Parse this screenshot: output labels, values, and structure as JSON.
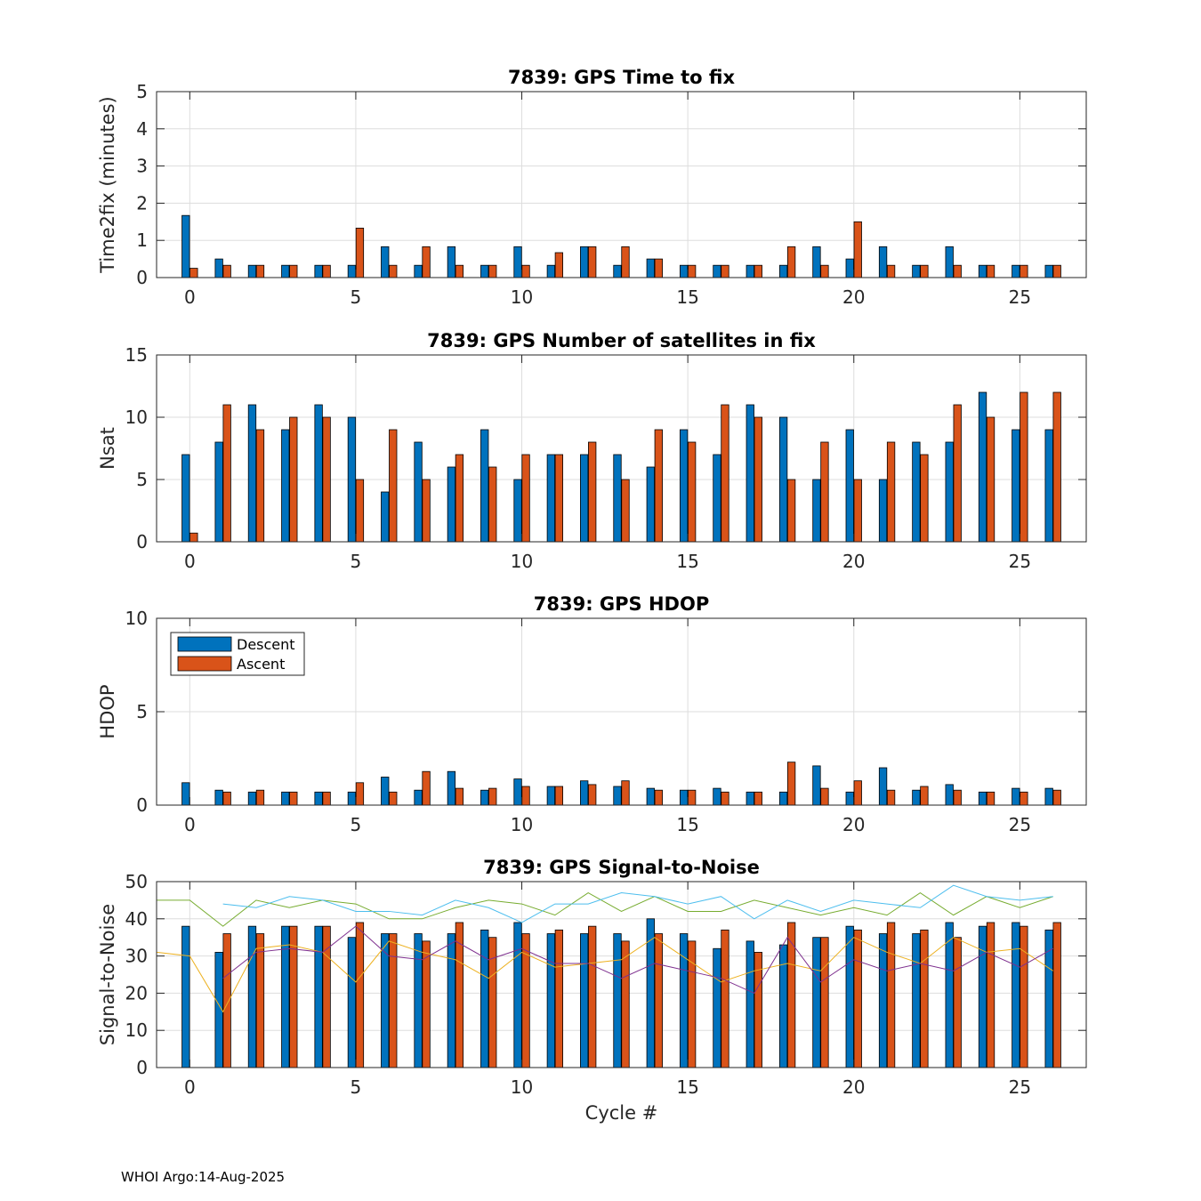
{
  "footer": "WHOI Argo:14-Aug-2025",
  "colors": {
    "descent": "#0072BD",
    "ascent": "#D95319",
    "grid": "#dddddd",
    "axis": "#262626"
  },
  "legend": {
    "descent": "Descent",
    "ascent": "Ascent",
    "placement": "top-left"
  },
  "chart_data": [
    {
      "type": "bar",
      "title": "7839: GPS Time to fix",
      "xlabel": "",
      "ylabel": "Time2fix (minutes)",
      "xlim": [
        -1,
        27
      ],
      "ylim": [
        0,
        5
      ],
      "xticks": [
        0,
        5,
        10,
        15,
        20,
        25
      ],
      "yticks": [
        0,
        1,
        2,
        3,
        4,
        5
      ],
      "x": [
        0,
        1,
        2,
        3,
        4,
        5,
        6,
        7,
        8,
        9,
        10,
        11,
        12,
        13,
        14,
        15,
        16,
        17,
        18,
        19,
        20,
        21,
        22,
        23,
        24,
        25,
        26
      ],
      "series": [
        {
          "name": "Descent",
          "values": [
            1.67,
            0.5,
            0.33,
            0.33,
            0.33,
            0.33,
            0.83,
            0.33,
            0.83,
            0.33,
            0.83,
            0.33,
            0.83,
            0.33,
            0.5,
            0.33,
            0.33,
            0.33,
            0.33,
            0.83,
            0.5,
            0.83,
            0.33,
            0.83,
            0.33,
            0.33,
            0.33
          ]
        },
        {
          "name": "Ascent",
          "values": [
            0.25,
            0.33,
            0.33,
            0.33,
            0.33,
            1.33,
            0.33,
            0.83,
            0.33,
            0.33,
            0.33,
            0.67,
            0.83,
            0.83,
            0.5,
            0.33,
            0.33,
            0.33,
            0.83,
            0.33,
            1.5,
            0.33,
            0.33,
            0.33,
            0.33,
            0.33,
            0.33
          ]
        }
      ]
    },
    {
      "type": "bar",
      "title": "7839: GPS Number of satellites in fix",
      "xlabel": "",
      "ylabel": "Nsat",
      "xlim": [
        -1,
        27
      ],
      "ylim": [
        0,
        15
      ],
      "xticks": [
        0,
        5,
        10,
        15,
        20,
        25
      ],
      "yticks": [
        0,
        5,
        10,
        15
      ],
      "x": [
        0,
        1,
        2,
        3,
        4,
        5,
        6,
        7,
        8,
        9,
        10,
        11,
        12,
        13,
        14,
        15,
        16,
        17,
        18,
        19,
        20,
        21,
        22,
        23,
        24,
        25,
        26
      ],
      "series": [
        {
          "name": "Descent",
          "values": [
            7,
            8,
            11,
            9,
            11,
            10,
            4,
            8,
            6,
            9,
            5,
            7,
            7,
            7,
            6,
            9,
            7,
            11,
            10,
            5,
            9,
            5,
            8,
            8,
            12,
            9,
            9
          ]
        },
        {
          "name": "Ascent",
          "values": [
            0.7,
            11,
            9,
            10,
            10,
            5,
            9,
            5,
            7,
            6,
            7,
            7,
            8,
            5,
            9,
            8,
            11,
            10,
            5,
            8,
            5,
            8,
            7,
            11,
            10,
            12,
            12
          ]
        }
      ]
    },
    {
      "type": "bar",
      "title": "7839: GPS HDOP",
      "xlabel": "",
      "ylabel": "HDOP",
      "xlim": [
        -1,
        27
      ],
      "ylim": [
        0,
        10
      ],
      "xticks": [
        0,
        5,
        10,
        15,
        20,
        25
      ],
      "yticks": [
        0,
        5,
        10
      ],
      "show_legend": true,
      "x": [
        0,
        1,
        2,
        3,
        4,
        5,
        6,
        7,
        8,
        9,
        10,
        11,
        12,
        13,
        14,
        15,
        16,
        17,
        18,
        19,
        20,
        21,
        22,
        23,
        24,
        25,
        26
      ],
      "series": [
        {
          "name": "Descent",
          "values": [
            1.2,
            0.8,
            0.7,
            0.7,
            0.7,
            0.7,
            1.5,
            0.8,
            1.8,
            0.8,
            1.4,
            1.0,
            1.3,
            1.0,
            0.9,
            0.8,
            0.9,
            0.7,
            0.7,
            2.1,
            0.7,
            2.0,
            0.8,
            1.1,
            0.7,
            0.9,
            0.9
          ]
        },
        {
          "name": "Ascent",
          "values": [
            0,
            0.7,
            0.8,
            0.7,
            0.7,
            1.2,
            0.7,
            1.8,
            0.9,
            0.9,
            1.0,
            1.0,
            1.1,
            1.3,
            0.8,
            0.8,
            0.7,
            0.7,
            2.3,
            0.9,
            1.3,
            0.8,
            1.0,
            0.8,
            0.7,
            0.7,
            0.8
          ]
        }
      ]
    },
    {
      "type": "bar",
      "title": "7839: GPS Signal-to-Noise",
      "xlabel": "Cycle #",
      "ylabel": "Signal-to-Noise",
      "xlim": [
        -1,
        27
      ],
      "ylim": [
        0,
        50
      ],
      "xticks": [
        0,
        5,
        10,
        15,
        20,
        25
      ],
      "yticks": [
        0,
        10,
        20,
        30,
        40,
        50
      ],
      "x": [
        0,
        1,
        2,
        3,
        4,
        5,
        6,
        7,
        8,
        9,
        10,
        11,
        12,
        13,
        14,
        15,
        16,
        17,
        18,
        19,
        20,
        21,
        22,
        23,
        24,
        25,
        26
      ],
      "series": [
        {
          "name": "Descent",
          "values": [
            38,
            31,
            38,
            38,
            38,
            35,
            36,
            36,
            36,
            37,
            39,
            36,
            36,
            36,
            40,
            36,
            32,
            34,
            33,
            35,
            38,
            36,
            36,
            39,
            38,
            39,
            37
          ]
        },
        {
          "name": "Ascent",
          "values": [
            0,
            36,
            36,
            38,
            38,
            39,
            36,
            34,
            39,
            35,
            36,
            37,
            38,
            34,
            36,
            34,
            37,
            31,
            39,
            35,
            37,
            39,
            37,
            35,
            39,
            38,
            39
          ]
        }
      ],
      "lines": [
        {
          "color": "#77AC30",
          "x": [
            -1,
            0,
            1,
            2,
            3,
            4,
            5,
            6,
            7,
            8,
            9,
            10,
            11,
            12,
            13,
            14,
            15,
            16,
            17,
            18,
            19,
            20,
            21,
            22,
            23,
            24,
            25,
            26
          ],
          "values": [
            45,
            45,
            38,
            45,
            43,
            45,
            44,
            40,
            40,
            43,
            45,
            44,
            41,
            47,
            42,
            46,
            42,
            42,
            45,
            43,
            41,
            43,
            41,
            47,
            41,
            46,
            43,
            46
          ]
        },
        {
          "color": "#4DBEEE",
          "x": [
            1,
            2,
            3,
            4,
            5,
            6,
            7,
            8,
            9,
            10,
            11,
            12,
            13,
            14,
            15,
            16,
            17,
            18,
            19,
            20,
            21,
            22,
            23,
            24,
            25,
            26
          ],
          "values": [
            44,
            43,
            46,
            45,
            42,
            42,
            41,
            45,
            43,
            39,
            44,
            44,
            47,
            46,
            44,
            46,
            40,
            45,
            42,
            45,
            44,
            43,
            49,
            46,
            45,
            46
          ]
        },
        {
          "color": "#EDB120",
          "x": [
            -1,
            0,
            1,
            2,
            3,
            4,
            5,
            6,
            7,
            8,
            9,
            10,
            11,
            12,
            13,
            14,
            15,
            16,
            17,
            18,
            19,
            20,
            21,
            22,
            23,
            24,
            25,
            26
          ],
          "values": [
            31,
            30,
            15,
            32,
            33,
            31,
            23,
            34,
            31,
            29,
            24,
            31,
            27,
            28,
            29,
            35,
            29,
            23,
            26,
            28,
            26,
            35,
            31,
            28,
            35,
            31,
            32,
            26
          ]
        },
        {
          "color": "#7E2F8E",
          "x": [
            1,
            2,
            3,
            4,
            5,
            6,
            7,
            8,
            9,
            10,
            11,
            12,
            13,
            14,
            15,
            16,
            17,
            18,
            19,
            20,
            21,
            22,
            23,
            24,
            25,
            26
          ],
          "values": [
            24,
            31,
            32,
            31,
            38,
            30,
            29,
            34,
            29,
            32,
            28,
            28,
            24,
            28,
            26,
            24,
            20,
            35,
            23,
            29,
            26,
            28,
            26,
            31,
            27,
            32
          ]
        }
      ]
    }
  ]
}
